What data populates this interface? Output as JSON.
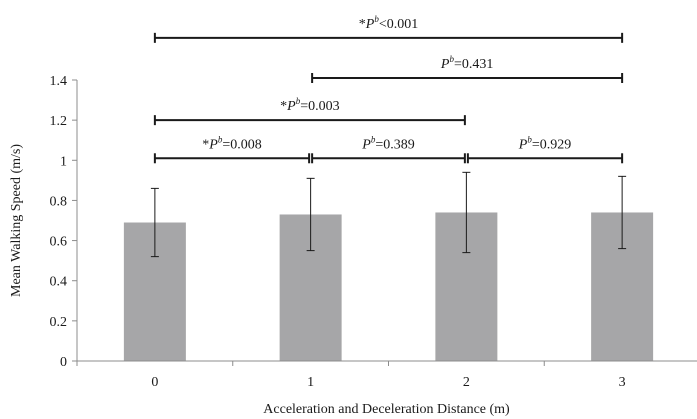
{
  "chart_data": {
    "type": "bar",
    "categories": [
      "0",
      "1",
      "2",
      "3"
    ],
    "values": [
      0.69,
      0.73,
      0.74,
      0.74
    ],
    "error": [
      0.17,
      0.18,
      0.2,
      0.18
    ],
    "xlabel": "Acceleration and Deceleration Distance (m)",
    "ylabel": "Mean Walking Speed (m/s)",
    "ylim": [
      0,
      1.4
    ],
    "yticks": [
      "0",
      "0.2",
      "0.4",
      "0.6",
      "0.8",
      "1",
      "1.2",
      "1.4"
    ],
    "grid": false,
    "bar_color": "#a6a6a8",
    "comparisons": [
      {
        "from": 0,
        "to": 3,
        "y": 1.61,
        "star": "*",
        "p": "P",
        "sup": "b",
        "rest": "<0.001"
      },
      {
        "from": 1,
        "to": 3,
        "y": 1.41,
        "star": "",
        "p": "P",
        "sup": "b",
        "rest": "=0.431"
      },
      {
        "from": 0,
        "to": 2,
        "y": 1.2,
        "star": "*",
        "p": "P",
        "sup": "b",
        "rest": "=0.003"
      },
      {
        "from": 0,
        "to": 1,
        "y": 1.01,
        "star": "*",
        "p": "P",
        "sup": "b",
        "rest": "=0.008"
      },
      {
        "from": 1,
        "to": 2,
        "y": 1.01,
        "star": "",
        "p": "P",
        "sup": "b",
        "rest": "=0.389"
      },
      {
        "from": 2,
        "to": 3,
        "y": 1.01,
        "star": "",
        "p": "P",
        "sup": "b",
        "rest": "=0.929"
      }
    ]
  }
}
